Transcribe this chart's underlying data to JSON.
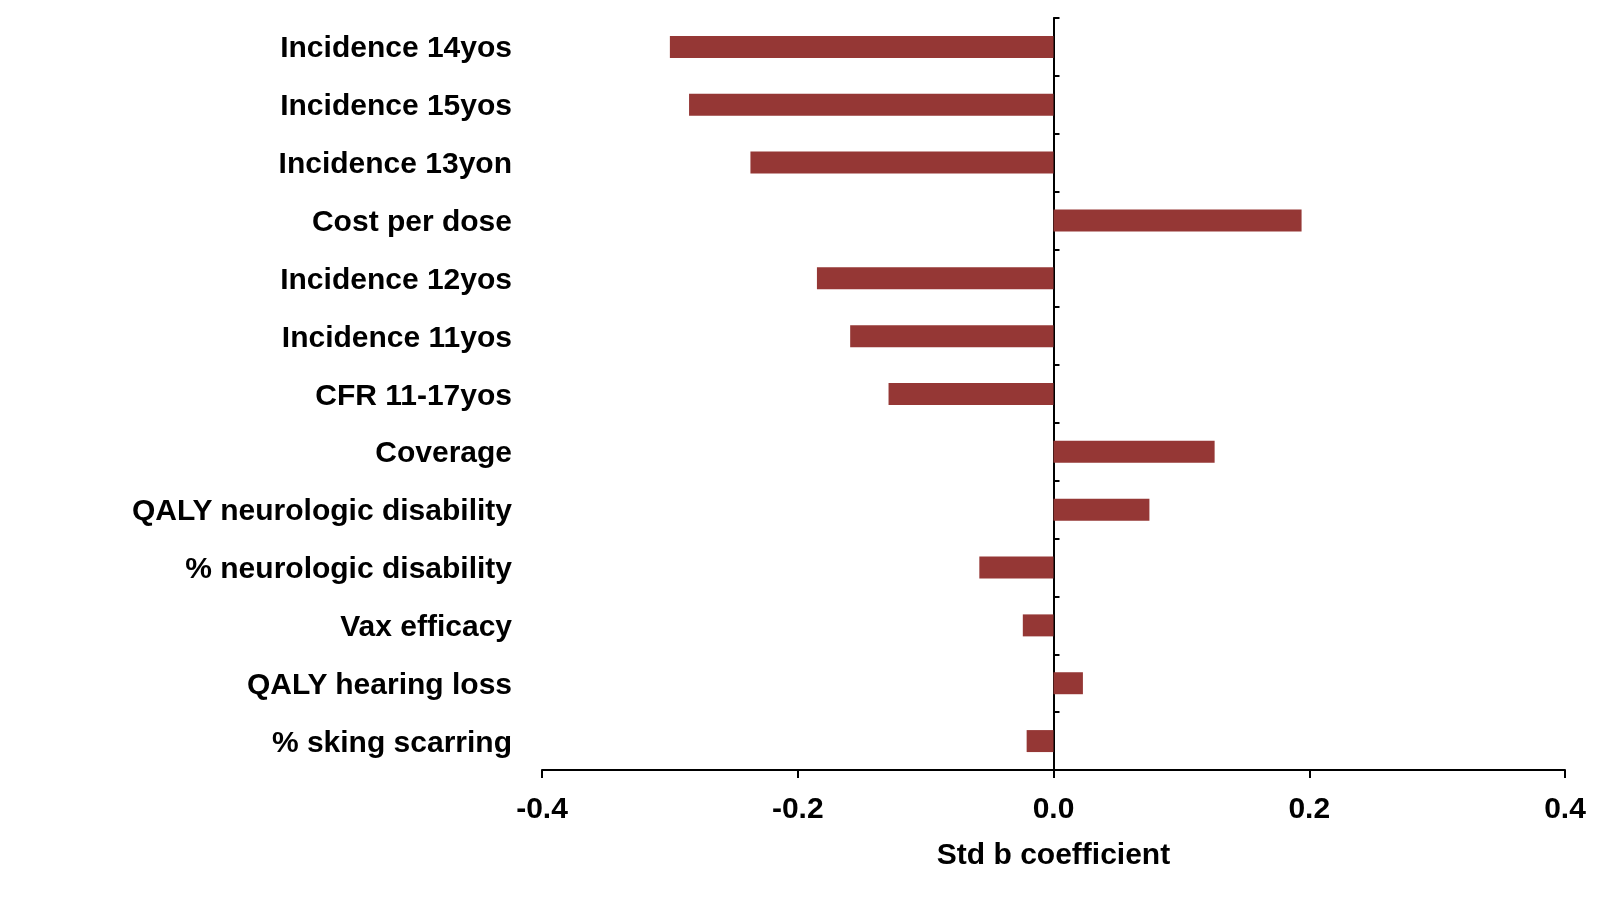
{
  "chart_data": {
    "type": "bar",
    "orientation": "horizontal",
    "categories": [
      "Incidence 14yos",
      "Incidence 15yos",
      "Incidence 13yon",
      "Cost per dose",
      "Incidence 12yos",
      "Incidence 11yos",
      "CFR 11-17yos",
      "Coverage",
      "QALY neurologic disability",
      "% neurologic disability",
      "Vax efficacy",
      "QALY hearing loss",
      "% sking scarring"
    ],
    "values": [
      -0.3,
      -0.285,
      -0.237,
      0.194,
      -0.185,
      -0.159,
      -0.129,
      0.126,
      0.075,
      -0.058,
      -0.024,
      0.023,
      -0.021
    ],
    "color": "#953735",
    "xlim": [
      -0.4,
      0.4
    ],
    "xticks": [
      {
        "value": -0.4,
        "label": "-0.4"
      },
      {
        "value": -0.2,
        "label": "-0.2"
      },
      {
        "value": 0,
        "label": "0.0"
      },
      {
        "value": 0.2,
        "label": "0.2"
      },
      {
        "value": 0.4,
        "label": "0.4"
      }
    ],
    "xlabel": "Std b coefficient"
  }
}
